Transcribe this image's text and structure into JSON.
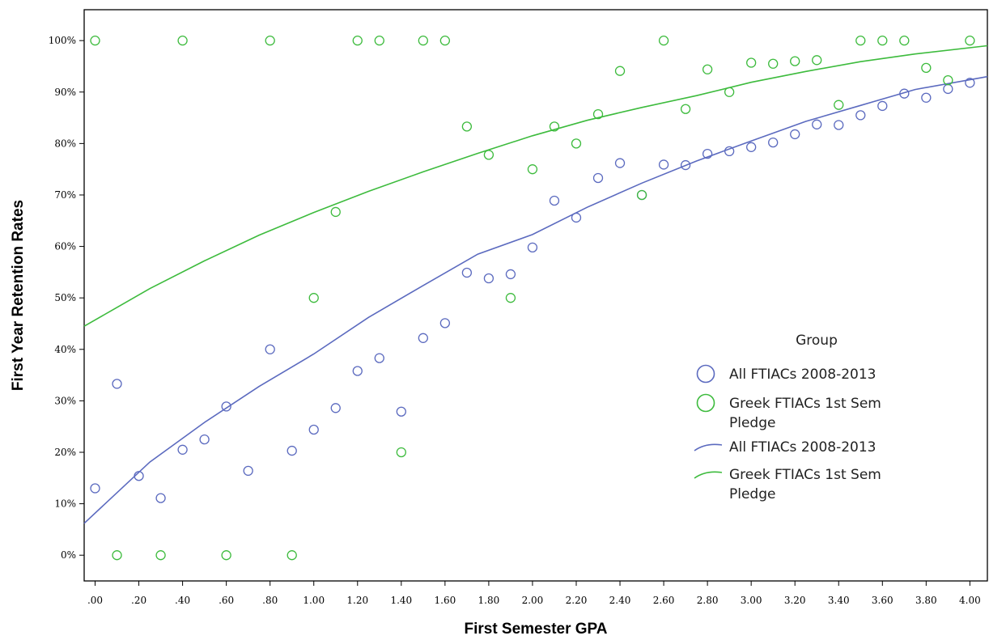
{
  "chart_data": {
    "type": "scatter",
    "xlabel": "First Semester GPA",
    "ylabel": "First Year Retention Rates",
    "xlim": [
      -0.05,
      4.08
    ],
    "ylim": [
      -0.05,
      1.06
    ],
    "x_ticks": [
      0,
      0.2,
      0.4,
      0.6,
      0.8,
      1.0,
      1.2,
      1.4,
      1.6,
      1.8,
      2.0,
      2.2,
      2.4,
      2.6,
      2.8,
      3.0,
      3.2,
      3.4,
      3.6,
      3.8,
      4.0
    ],
    "x_tick_labels": [
      ".00",
      ".20",
      ".40",
      ".60",
      ".80",
      "1.00",
      "1.20",
      "1.40",
      "1.60",
      "1.80",
      "2.00",
      "2.20",
      "2.40",
      "2.60",
      "2.80",
      "3.00",
      "3.20",
      "3.40",
      "3.60",
      "3.80",
      "4.00"
    ],
    "y_ticks": [
      0,
      0.1,
      0.2,
      0.3,
      0.4,
      0.5,
      0.6,
      0.7,
      0.8,
      0.9,
      1.0
    ],
    "y_tick_labels": [
      "0%",
      "10%",
      "20%",
      "30%",
      "40%",
      "50%",
      "60%",
      "70%",
      "80%",
      "90%",
      "100%"
    ],
    "grid": false,
    "legend_placement": "right",
    "legend_title": "Group",
    "series": [
      {
        "name": "All FTIACs 2008-2013",
        "kind": "points",
        "color": "#5b6abf",
        "x": [
          0.0,
          0.1,
          0.2,
          0.3,
          0.4,
          0.5,
          0.6,
          0.7,
          0.8,
          0.9,
          1.0,
          1.1,
          1.2,
          1.3,
          1.4,
          1.5,
          1.6,
          1.7,
          1.8,
          1.9,
          2.0,
          2.1,
          2.2,
          2.3,
          2.4,
          2.5,
          2.6,
          2.7,
          2.8,
          2.9,
          3.0,
          3.1,
          3.2,
          3.3,
          3.4,
          3.5,
          3.6,
          3.7,
          3.8,
          3.9,
          4.0
        ],
        "y": [
          0.13,
          0.333,
          0.154,
          0.111,
          0.205,
          0.225,
          0.289,
          0.164,
          0.4,
          0.203,
          0.244,
          0.286,
          0.358,
          0.383,
          0.279,
          0.422,
          0.451,
          0.549,
          0.538,
          0.546,
          0.598,
          0.689,
          0.656,
          0.733,
          0.762,
          0.7,
          0.759,
          0.758,
          0.78,
          0.785,
          0.793,
          0.802,
          0.818,
          0.837,
          0.836,
          0.855,
          0.873,
          0.897,
          0.889,
          0.906,
          0.918
        ]
      },
      {
        "name": "Greek FTIACs 1st Sem Pledge",
        "kind": "points",
        "color": "#3dbb3d",
        "x": [
          0.0,
          0.1,
          0.3,
          0.4,
          0.6,
          0.8,
          0.9,
          1.0,
          1.1,
          1.2,
          1.3,
          1.4,
          1.5,
          1.6,
          1.7,
          1.8,
          1.9,
          2.0,
          2.1,
          2.2,
          2.3,
          2.4,
          2.5,
          2.6,
          2.7,
          2.8,
          2.9,
          3.0,
          3.1,
          3.2,
          3.3,
          3.4,
          3.5,
          3.6,
          3.7,
          3.8,
          3.9,
          4.0
        ],
        "y": [
          1.0,
          0.0,
          0.0,
          1.0,
          0.0,
          1.0,
          0.0,
          0.5,
          0.667,
          1.0,
          1.0,
          0.2,
          1.0,
          1.0,
          0.833,
          0.778,
          0.5,
          0.75,
          0.833,
          0.8,
          0.857,
          0.941,
          0.7,
          1.0,
          0.867,
          0.944,
          0.9,
          0.957,
          0.955,
          0.96,
          0.962,
          0.875,
          1.0,
          1.0,
          1.0,
          0.947,
          0.923,
          1.0
        ]
      },
      {
        "name": "All FTIACs 2008-2013",
        "kind": "fit-line",
        "color": "#5b6abf",
        "x": [
          -0.05,
          0.25,
          0.5,
          0.75,
          1.0,
          1.25,
          1.5,
          1.75,
          2.0,
          2.25,
          2.5,
          2.75,
          3.0,
          3.25,
          3.5,
          3.75,
          4.08
        ],
        "y": [
          0.062,
          0.181,
          0.258,
          0.328,
          0.391,
          0.462,
          0.524,
          0.585,
          0.623,
          0.676,
          0.723,
          0.766,
          0.805,
          0.843,
          0.874,
          0.905,
          0.93
        ]
      },
      {
        "name": "Greek FTIACs 1st Sem Pledge",
        "kind": "fit-line",
        "color": "#3dbb3d",
        "x": [
          -0.05,
          0.25,
          0.5,
          0.75,
          1.0,
          1.25,
          1.5,
          1.75,
          2.0,
          2.25,
          2.5,
          2.75,
          3.0,
          3.25,
          3.5,
          3.75,
          4.08
        ],
        "y": [
          0.445,
          0.518,
          0.572,
          0.622,
          0.666,
          0.707,
          0.745,
          0.781,
          0.815,
          0.845,
          0.87,
          0.893,
          0.919,
          0.94,
          0.959,
          0.974,
          0.99
        ]
      }
    ],
    "legend": {
      "title": "Group",
      "entries": [
        {
          "kind": "marker",
          "color": "#5b6abf",
          "lines": [
            "All FTIACs 2008-2013"
          ]
        },
        {
          "kind": "marker",
          "color": "#3dbb3d",
          "lines": [
            "Greek FTIACs 1st Sem",
            "Pledge"
          ]
        },
        {
          "kind": "line",
          "color": "#5b6abf",
          "lines": [
            "All FTIACs 2008-2013"
          ]
        },
        {
          "kind": "line",
          "color": "#3dbb3d",
          "lines": [
            "Greek FTIACs 1st Sem",
            "Pledge"
          ]
        }
      ]
    }
  }
}
